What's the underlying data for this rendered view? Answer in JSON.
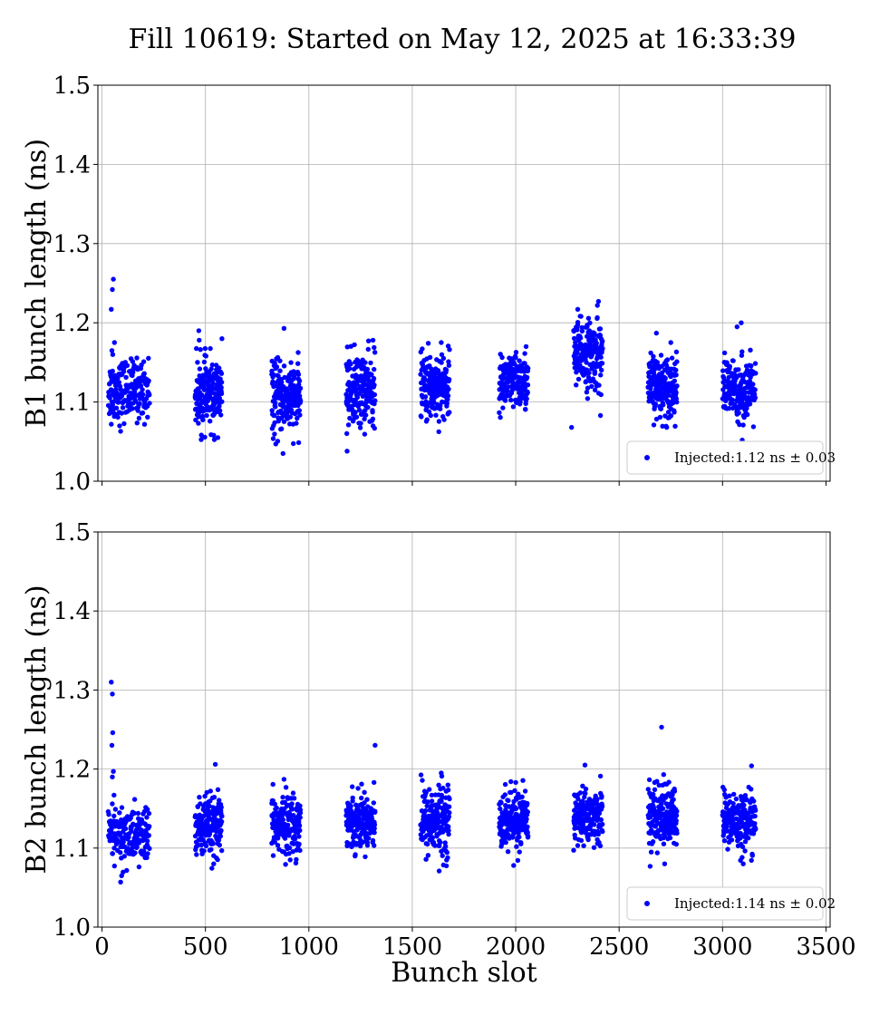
{
  "title": "Fill 10619: Started on May 12, 2025 at 16:33:39",
  "colors": {
    "points": "#0000ff",
    "grid": "#b0b0b0",
    "axes": "#000000"
  },
  "chart_data": [
    {
      "type": "scatter",
      "ylabel": "B1 bunch length (ns)",
      "xlabel": "",
      "xlim": [
        -20,
        3520
      ],
      "ylim": [
        1.0,
        1.5
      ],
      "xticks": [
        0,
        500,
        1000,
        1500,
        2000,
        2500,
        3000,
        3500
      ],
      "yticks": [
        "1.0",
        "1.1",
        "1.2",
        "1.3",
        "1.4",
        "1.5"
      ],
      "show_xtick_labels": false,
      "grid": true,
      "legend": {
        "placement": "lower-right",
        "label": "Injected:1.12 ns ± 0.03"
      },
      "clusters": [
        {
          "x": [
            30,
            230
          ],
          "mean": 1.115,
          "spread": 0.022
        },
        {
          "x": [
            450,
            580
          ],
          "mean": 1.11,
          "spread": 0.025
        },
        {
          "x": [
            820,
            960
          ],
          "mean": 1.105,
          "spread": 0.025
        },
        {
          "x": [
            1180,
            1320
          ],
          "mean": 1.115,
          "spread": 0.027
        },
        {
          "x": [
            1540,
            1680
          ],
          "mean": 1.12,
          "spread": 0.025
        },
        {
          "x": [
            1920,
            2060
          ],
          "mean": 1.125,
          "spread": 0.02
        },
        {
          "x": [
            2280,
            2420
          ],
          "mean": 1.16,
          "spread": 0.025
        },
        {
          "x": [
            2640,
            2780
          ],
          "mean": 1.12,
          "spread": 0.022
        },
        {
          "x": [
            3000,
            3160
          ],
          "mean": 1.115,
          "spread": 0.022
        }
      ],
      "outliers": [
        {
          "x": 55,
          "y": 1.255
        },
        {
          "x": 50,
          "y": 1.242
        },
        {
          "x": 45,
          "y": 1.217
        },
        {
          "x": 60,
          "y": 1.175
        },
        {
          "x": 48,
          "y": 1.165
        },
        {
          "x": 52,
          "y": 1.16
        },
        {
          "x": 45,
          "y": 1.072
        },
        {
          "x": 90,
          "y": 1.063
        },
        {
          "x": 468,
          "y": 1.19
        },
        {
          "x": 470,
          "y": 1.178
        },
        {
          "x": 580,
          "y": 1.18
        },
        {
          "x": 560,
          "y": 1.055
        },
        {
          "x": 540,
          "y": 1.058
        },
        {
          "x": 880,
          "y": 1.193
        },
        {
          "x": 875,
          "y": 1.035
        },
        {
          "x": 840,
          "y": 1.047
        },
        {
          "x": 1185,
          "y": 1.038
        },
        {
          "x": 1310,
          "y": 1.178
        },
        {
          "x": 1640,
          "y": 1.175
        },
        {
          "x": 2050,
          "y": 1.17
        },
        {
          "x": 2300,
          "y": 1.217
        },
        {
          "x": 2400,
          "y": 1.227
        },
        {
          "x": 2395,
          "y": 1.222
        },
        {
          "x": 2270,
          "y": 1.068
        },
        {
          "x": 2410,
          "y": 1.083
        },
        {
          "x": 2680,
          "y": 1.187
        },
        {
          "x": 2750,
          "y": 1.175
        },
        {
          "x": 2730,
          "y": 1.068
        },
        {
          "x": 3090,
          "y": 1.2
        },
        {
          "x": 3070,
          "y": 1.195
        },
        {
          "x": 3010,
          "y": 1.162
        },
        {
          "x": 3095,
          "y": 1.052
        }
      ]
    },
    {
      "type": "scatter",
      "ylabel": "B2 bunch length (ns)",
      "xlabel": "Bunch slot",
      "xlim": [
        -20,
        3520
      ],
      "ylim": [
        1.0,
        1.5
      ],
      "xticks": [
        0,
        500,
        1000,
        1500,
        2000,
        2500,
        3000,
        3500
      ],
      "yticks": [
        "1.0",
        "1.1",
        "1.2",
        "1.3",
        "1.4",
        "1.5"
      ],
      "show_xtick_labels": true,
      "grid": true,
      "legend": {
        "placement": "lower-right",
        "label": "Injected:1.14 ns ± 0.02"
      },
      "clusters": [
        {
          "x": [
            30,
            230
          ],
          "mean": 1.115,
          "spread": 0.022
        },
        {
          "x": [
            450,
            580
          ],
          "mean": 1.125,
          "spread": 0.022
        },
        {
          "x": [
            820,
            960
          ],
          "mean": 1.13,
          "spread": 0.022
        },
        {
          "x": [
            1180,
            1320
          ],
          "mean": 1.135,
          "spread": 0.02
        },
        {
          "x": [
            1540,
            1680
          ],
          "mean": 1.135,
          "spread": 0.025
        },
        {
          "x": [
            1920,
            2060
          ],
          "mean": 1.135,
          "spread": 0.022
        },
        {
          "x": [
            2280,
            2420
          ],
          "mean": 1.14,
          "spread": 0.02
        },
        {
          "x": [
            2640,
            2780
          ],
          "mean": 1.14,
          "spread": 0.022
        },
        {
          "x": [
            3000,
            3160
          ],
          "mean": 1.135,
          "spread": 0.022
        }
      ],
      "outliers": [
        {
          "x": 45,
          "y": 1.31
        },
        {
          "x": 50,
          "y": 1.295
        },
        {
          "x": 52,
          "y": 1.246
        },
        {
          "x": 48,
          "y": 1.23
        },
        {
          "x": 55,
          "y": 1.197
        },
        {
          "x": 50,
          "y": 1.19
        },
        {
          "x": 58,
          "y": 1.167
        },
        {
          "x": 90,
          "y": 1.057
        },
        {
          "x": 95,
          "y": 1.065
        },
        {
          "x": 548,
          "y": 1.206
        },
        {
          "x": 540,
          "y": 1.08
        },
        {
          "x": 880,
          "y": 1.187
        },
        {
          "x": 1320,
          "y": 1.23
        },
        {
          "x": 1315,
          "y": 1.183
        },
        {
          "x": 1640,
          "y": 1.195
        },
        {
          "x": 1630,
          "y": 1.071
        },
        {
          "x": 2000,
          "y": 1.183
        },
        {
          "x": 1990,
          "y": 1.078
        },
        {
          "x": 2335,
          "y": 1.205
        },
        {
          "x": 2410,
          "y": 1.191
        },
        {
          "x": 2705,
          "y": 1.253
        },
        {
          "x": 2715,
          "y": 1.193
        },
        {
          "x": 2650,
          "y": 1.077
        },
        {
          "x": 2720,
          "y": 1.08
        },
        {
          "x": 3140,
          "y": 1.204
        },
        {
          "x": 3100,
          "y": 1.08
        }
      ]
    }
  ]
}
